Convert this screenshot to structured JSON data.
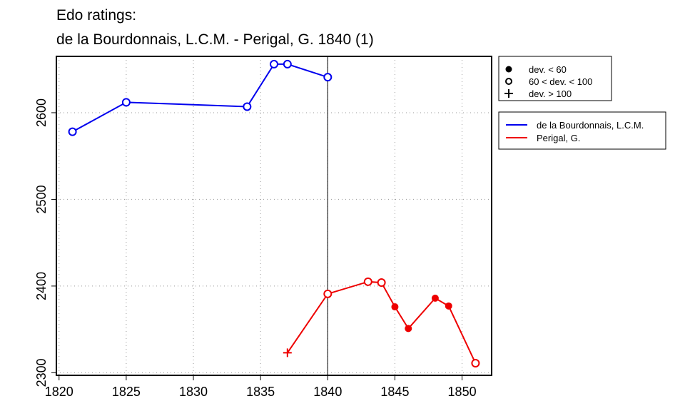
{
  "chart_data": {
    "type": "line",
    "title_lines": [
      "Edo ratings:",
      "de la Bourdonnais, L.C.M. - Perigal, G. 1840 (1)"
    ],
    "xlim": [
      1819.8,
      1852.2
    ],
    "ylim": [
      2297,
      2665
    ],
    "x_ticks": [
      1820,
      1825,
      1830,
      1835,
      1840,
      1845,
      1850
    ],
    "y_ticks": [
      2300,
      2400,
      2500,
      2600
    ],
    "grid": true,
    "vline_x": 1840,
    "legend_markers": [
      {
        "symbol": "filled",
        "label": "dev. < 60"
      },
      {
        "symbol": "open",
        "label": "60 < dev. < 100"
      },
      {
        "symbol": "plus",
        "label": "dev. > 100"
      }
    ],
    "series": [
      {
        "name": "de la Bourdonnais, L.C.M.",
        "color": "#0000ee",
        "points": [
          {
            "x": 1821,
            "y": 2578,
            "marker": "open"
          },
          {
            "x": 1825,
            "y": 2612,
            "marker": "open"
          },
          {
            "x": 1834,
            "y": 2607,
            "marker": "open"
          },
          {
            "x": 1836,
            "y": 2656,
            "marker": "open"
          },
          {
            "x": 1837,
            "y": 2656,
            "marker": "open"
          },
          {
            "x": 1840,
            "y": 2641,
            "marker": "open"
          }
        ]
      },
      {
        "name": "Perigal, G.",
        "color": "#ee0000",
        "points": [
          {
            "x": 1837,
            "y": 2323,
            "marker": "plus"
          },
          {
            "x": 1840,
            "y": 2391,
            "marker": "open"
          },
          {
            "x": 1843,
            "y": 2405,
            "marker": "open"
          },
          {
            "x": 1844,
            "y": 2404,
            "marker": "open"
          },
          {
            "x": 1845,
            "y": 2376,
            "marker": "filled"
          },
          {
            "x": 1846,
            "y": 2351,
            "marker": "filled"
          },
          {
            "x": 1848,
            "y": 2386,
            "marker": "filled"
          },
          {
            "x": 1849,
            "y": 2377,
            "marker": "filled"
          },
          {
            "x": 1851,
            "y": 2311,
            "marker": "open"
          }
        ]
      }
    ]
  }
}
